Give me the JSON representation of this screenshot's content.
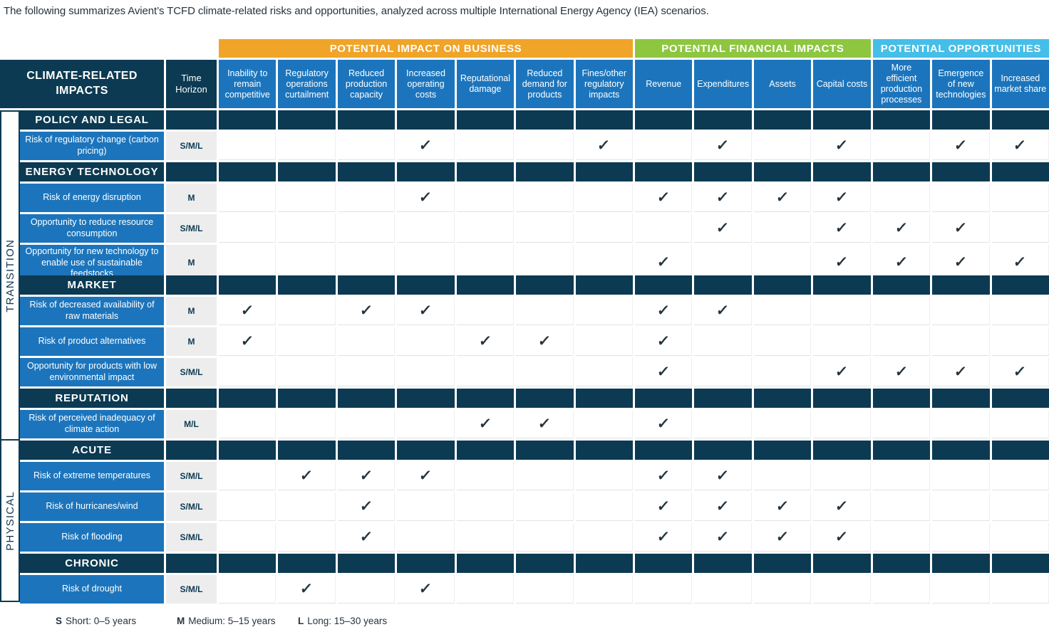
{
  "intro": "The following summarizes Avient’s TCFD climate-related risks and opportunities, analyzed across multiple International Energy Agency (IEA) scenarios.",
  "check_glyph": "✓",
  "colors": {
    "navy": "#0c3a52",
    "row_blue": "#1c75bc",
    "business_orange": "#f0a428",
    "financial_green": "#8dc63f",
    "opportunities_blue": "#45bee8",
    "time_cell_gray": "#ededee",
    "check_color": "#26343e"
  },
  "header": {
    "impacts_label": "CLIMATE-RELATED IMPACTS",
    "time_label": "Time Horizon",
    "groups": [
      {
        "label": "POTENTIAL IMPACT ON BUSINESS",
        "color": "#f0a428",
        "span": 7
      },
      {
        "label": "POTENTIAL FINANCIAL IMPACTS",
        "color": "#8dc63f",
        "span": 4
      },
      {
        "label": "POTENTIAL OPPORTUNITIES",
        "color": "#45bee8",
        "span": 3
      }
    ],
    "columns": [
      "Inability to remain competitive",
      "Regulatory operations curtailment",
      "Reduced production capacity",
      "Increased operating costs",
      "Reputational damage",
      "Reduced demand for products",
      "Fines/other regulatory impacts",
      "Revenue",
      "Expenditures",
      "Assets",
      "Capital costs",
      "More efficient production processes",
      "Emergence of new technologies",
      "Increased market share"
    ]
  },
  "side_groups": [
    {
      "label": "TRANSITION"
    },
    {
      "label": "PHYSICAL"
    }
  ],
  "table": {
    "rows": [
      {
        "type": "section",
        "label": "POLICY AND LEGAL"
      },
      {
        "type": "risk",
        "label": "Risk of regulatory change (carbon pricing)",
        "time": "S/M/L",
        "checks": [
          4,
          7,
          9,
          11,
          13,
          14
        ]
      },
      {
        "type": "section",
        "label": "ENERGY TECHNOLOGY"
      },
      {
        "type": "risk",
        "label": "Risk of energy disruption",
        "time": "M",
        "checks": [
          4,
          8,
          9,
          10,
          11
        ]
      },
      {
        "type": "risk",
        "label": "Opportunity to reduce resource consumption",
        "time": "S/M/L",
        "checks": [
          9,
          11,
          12,
          13
        ]
      },
      {
        "type": "risk",
        "label": "Opportunity for new technology to enable use of sustainable feedstocks",
        "time": "M",
        "checks": [
          8,
          11,
          12,
          13,
          14
        ]
      },
      {
        "type": "section",
        "label": "MARKET"
      },
      {
        "type": "risk",
        "label": "Risk of decreased availability of raw materials",
        "time": "M",
        "checks": [
          1,
          3,
          4,
          8,
          9
        ]
      },
      {
        "type": "risk",
        "label": "Risk of product alternatives",
        "time": "M",
        "checks": [
          1,
          5,
          6,
          8
        ]
      },
      {
        "type": "risk",
        "label": "Opportunity for products with low environmental impact",
        "time": "S/M/L",
        "checks": [
          8,
          11,
          12,
          13,
          14
        ]
      },
      {
        "type": "section",
        "label": "REPUTATION"
      },
      {
        "type": "risk",
        "label": "Risk of perceived inadequacy of climate action",
        "time": "M/L",
        "checks": [
          5,
          6,
          8
        ]
      },
      {
        "type": "section",
        "label": "ACUTE"
      },
      {
        "type": "risk",
        "label": "Risk of extreme temperatures",
        "time": "S/M/L",
        "checks": [
          2,
          3,
          4,
          8,
          9
        ]
      },
      {
        "type": "risk",
        "label": "Risk of hurricanes/wind",
        "time": "S/M/L",
        "checks": [
          3,
          8,
          9,
          10,
          11
        ]
      },
      {
        "type": "risk",
        "label": "Risk of flooding",
        "time": "S/M/L",
        "checks": [
          3,
          8,
          9,
          10,
          11
        ]
      },
      {
        "type": "section",
        "label": "CHRONIC"
      },
      {
        "type": "risk",
        "label": "Risk of drought",
        "time": "S/M/L",
        "checks": [
          2,
          4
        ]
      }
    ]
  },
  "legend": [
    {
      "key": "S",
      "text": "Short: 0–5 years"
    },
    {
      "key": "M",
      "text": "Medium: 5–15 years"
    },
    {
      "key": "L",
      "text": "Long: 15–30 years"
    }
  ]
}
